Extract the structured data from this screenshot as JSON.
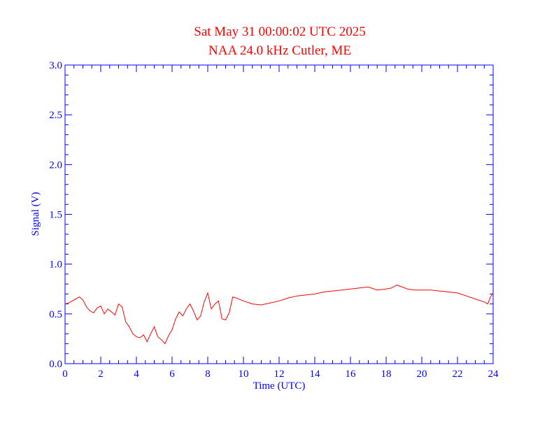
{
  "chart_data": {
    "type": "line",
    "title": "Sat May 31 00:00:02 UTC 2025",
    "subtitle": "NAA 24.0 kHz Cutler, ME",
    "xlabel": "Time (UTC)",
    "ylabel": "Signal (V)",
    "xlim": [
      0,
      24
    ],
    "ylim": [
      0.0,
      3.0
    ],
    "xticks": [
      "0",
      "2",
      "4",
      "6",
      "8",
      "10",
      "12",
      "14",
      "16",
      "18",
      "20",
      "22",
      "24"
    ],
    "xtick_values": [
      0,
      2,
      4,
      6,
      8,
      10,
      12,
      14,
      16,
      18,
      20,
      22,
      24
    ],
    "yticks": [
      "0.0",
      "0.5",
      "1.0",
      "1.5",
      "2.0",
      "2.5",
      "3.0"
    ],
    "ytick_values": [
      0.0,
      0.5,
      1.0,
      1.5,
      2.0,
      2.5,
      3.0
    ],
    "grid": false,
    "colors": {
      "title": "#ff0000",
      "axes": "#0000ff",
      "series": "#ff0000"
    },
    "series": [
      {
        "values_x": [
          0.0,
          0.2,
          0.4,
          0.6,
          0.8,
          1.0,
          1.2,
          1.4,
          1.6,
          1.8,
          2.0,
          2.2,
          2.4,
          2.6,
          2.8,
          3.0,
          3.2,
          3.4,
          3.6,
          3.8,
          4.0,
          4.2,
          4.4,
          4.6,
          4.8,
          5.0,
          5.2,
          5.4,
          5.6,
          5.8,
          6.0,
          6.2,
          6.4,
          6.6,
          6.8,
          7.0,
          7.2,
          7.4,
          7.6,
          7.8,
          8.0,
          8.2,
          8.4,
          8.6,
          8.8,
          9.0,
          9.2,
          9.4,
          9.6,
          10.0,
          10.5,
          11.0,
          11.5,
          12.0,
          12.5,
          13.0,
          13.5,
          14.0,
          14.5,
          15.0,
          15.5,
          16.0,
          16.5,
          17.0,
          17.5,
          18.0,
          18.3,
          18.6,
          18.9,
          19.2,
          19.6,
          20.0,
          20.5,
          21.0,
          21.5,
          22.0,
          22.5,
          23.0,
          23.5,
          23.7,
          23.85,
          24.0
        ],
        "values_y": [
          0.6,
          0.61,
          0.63,
          0.65,
          0.67,
          0.64,
          0.57,
          0.53,
          0.51,
          0.56,
          0.58,
          0.5,
          0.55,
          0.52,
          0.49,
          0.6,
          0.57,
          0.42,
          0.37,
          0.3,
          0.27,
          0.26,
          0.29,
          0.22,
          0.3,
          0.37,
          0.27,
          0.24,
          0.2,
          0.28,
          0.34,
          0.45,
          0.52,
          0.48,
          0.55,
          0.6,
          0.53,
          0.44,
          0.48,
          0.62,
          0.71,
          0.55,
          0.6,
          0.63,
          0.45,
          0.44,
          0.51,
          0.67,
          0.66,
          0.63,
          0.6,
          0.59,
          0.61,
          0.63,
          0.66,
          0.68,
          0.69,
          0.7,
          0.72,
          0.73,
          0.74,
          0.75,
          0.76,
          0.77,
          0.74,
          0.75,
          0.76,
          0.79,
          0.77,
          0.75,
          0.74,
          0.74,
          0.74,
          0.73,
          0.72,
          0.71,
          0.68,
          0.65,
          0.62,
          0.6,
          0.67,
          0.71
        ]
      }
    ]
  }
}
